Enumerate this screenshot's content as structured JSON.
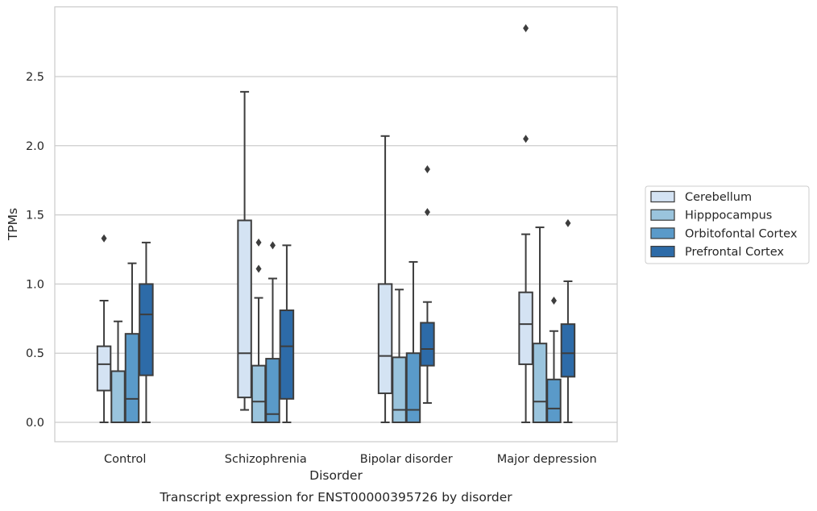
{
  "chart_data": {
    "type": "boxplot",
    "xlabel": "Disorder",
    "ylabel": "TPMs",
    "caption": "Transcript expression for ENST00000395726 by disorder",
    "ylim": [
      -0.14,
      3.0
    ],
    "yticks": [
      0.0,
      0.5,
      1.0,
      1.5,
      2.0,
      2.5
    ],
    "ytick_labels": [
      "0.0",
      "0.5",
      "1.0",
      "1.5",
      "2.0",
      "2.5"
    ],
    "grid": "horizontal",
    "legend_position": "right",
    "categories": [
      "Control",
      "Schizophrenia",
      "Bipolar disorder",
      "Major depression"
    ],
    "series": [
      {
        "name": "Cerebellum",
        "color": "#d4e3f3",
        "boxes": [
          {
            "whislo": 0.0,
            "q1": 0.23,
            "med": 0.42,
            "q3": 0.55,
            "whishi": 0.88,
            "fliers": [
              1.33
            ]
          },
          {
            "whislo": 0.09,
            "q1": 0.18,
            "med": 0.5,
            "q3": 1.46,
            "whishi": 2.39,
            "fliers": []
          },
          {
            "whislo": 0.0,
            "q1": 0.21,
            "med": 0.48,
            "q3": 1.0,
            "whishi": 2.07,
            "fliers": []
          },
          {
            "whislo": 0.0,
            "q1": 0.42,
            "med": 0.71,
            "q3": 0.94,
            "whishi": 1.36,
            "fliers": [
              2.05,
              2.85
            ]
          }
        ]
      },
      {
        "name": "Hipppocampus",
        "color": "#9ac4dd",
        "boxes": [
          {
            "whislo": 0.0,
            "q1": 0.0,
            "med": 0.0,
            "q3": 0.37,
            "whishi": 0.73,
            "fliers": []
          },
          {
            "whislo": 0.0,
            "q1": 0.0,
            "med": 0.15,
            "q3": 0.41,
            "whishi": 0.9,
            "fliers": [
              1.11,
              1.3
            ]
          },
          {
            "whislo": 0.0,
            "q1": 0.0,
            "med": 0.09,
            "q3": 0.47,
            "whishi": 0.96,
            "fliers": []
          },
          {
            "whislo": 0.0,
            "q1": 0.0,
            "med": 0.15,
            "q3": 0.57,
            "whishi": 1.41,
            "fliers": []
          }
        ]
      },
      {
        "name": "Orbitofontal Cortex",
        "color": "#5a9ac9",
        "boxes": [
          {
            "whislo": 0.0,
            "q1": 0.0,
            "med": 0.17,
            "q3": 0.64,
            "whishi": 1.15,
            "fliers": []
          },
          {
            "whislo": 0.0,
            "q1": 0.0,
            "med": 0.06,
            "q3": 0.46,
            "whishi": 1.04,
            "fliers": [
              1.28
            ]
          },
          {
            "whislo": 0.0,
            "q1": 0.0,
            "med": 0.09,
            "q3": 0.5,
            "whishi": 1.16,
            "fliers": []
          },
          {
            "whislo": 0.0,
            "q1": 0.0,
            "med": 0.1,
            "q3": 0.31,
            "whishi": 0.66,
            "fliers": [
              0.88
            ]
          }
        ]
      },
      {
        "name": "Prefrontal Cortex",
        "color": "#2d6ba8",
        "boxes": [
          {
            "whislo": 0.0,
            "q1": 0.34,
            "med": 0.78,
            "q3": 1.0,
            "whishi": 1.3,
            "fliers": []
          },
          {
            "whislo": 0.0,
            "q1": 0.17,
            "med": 0.55,
            "q3": 0.81,
            "whishi": 1.28,
            "fliers": []
          },
          {
            "whislo": 0.14,
            "q1": 0.41,
            "med": 0.53,
            "q3": 0.72,
            "whishi": 0.87,
            "fliers": [
              1.52,
              1.83
            ]
          },
          {
            "whislo": 0.0,
            "q1": 0.33,
            "med": 0.5,
            "q3": 0.71,
            "whishi": 1.02,
            "fliers": [
              1.44
            ]
          }
        ]
      }
    ]
  }
}
